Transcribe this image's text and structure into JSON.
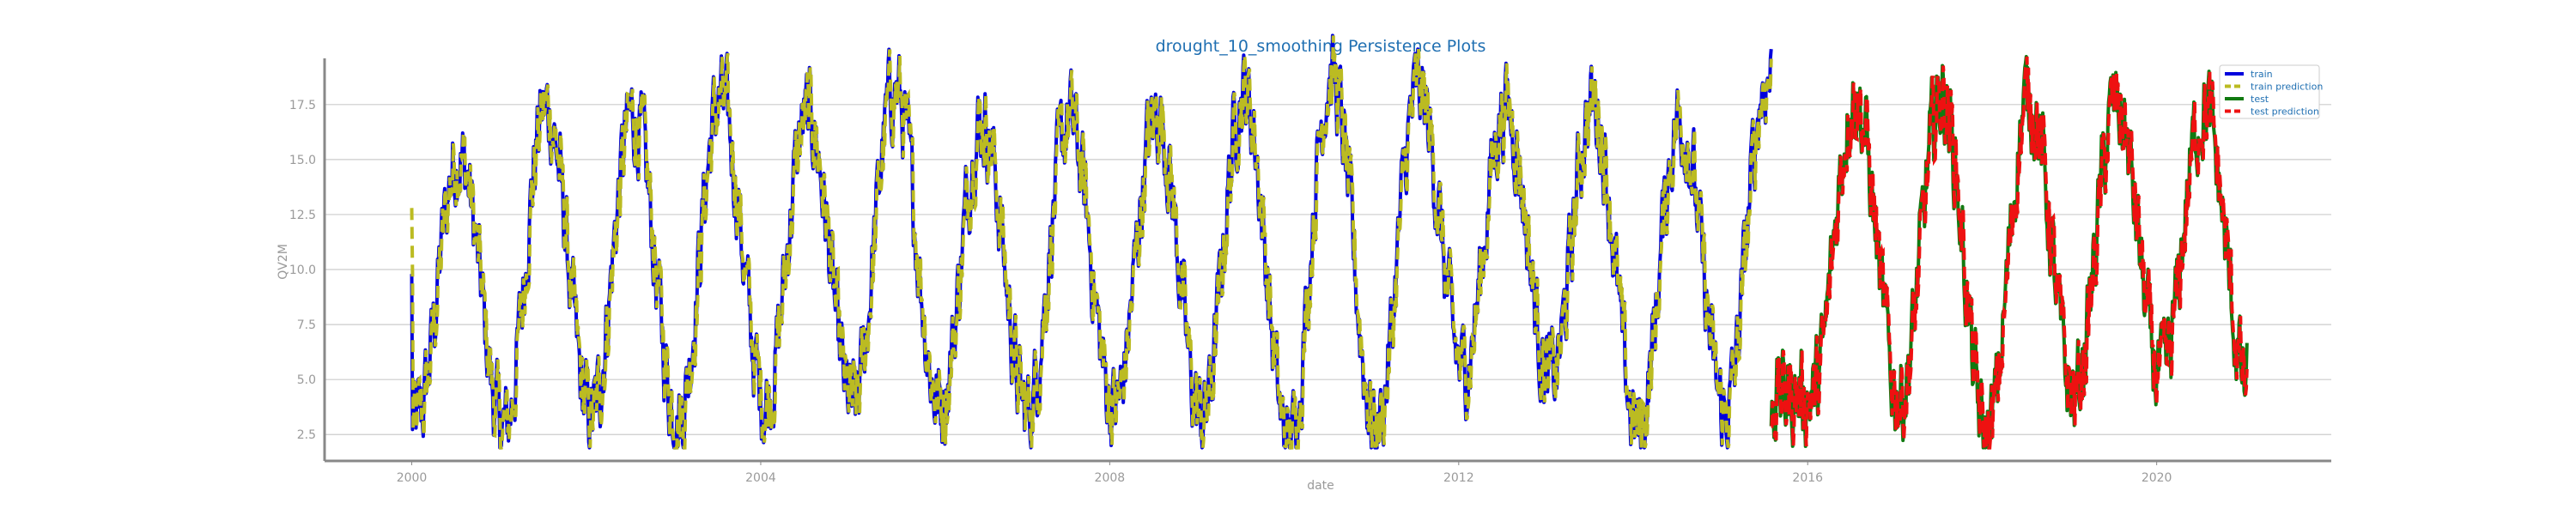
{
  "chart_data": {
    "type": "line",
    "title": "drought_10_smoothing Persistence Plots",
    "xlabel": "date",
    "ylabel": "QV2M",
    "xlim": [
      "1999-01-01",
      "2022-01-01"
    ],
    "ylim": [
      1.3,
      19.6
    ],
    "x_ticks": [
      "2000",
      "2004",
      "2008",
      "2012",
      "2016",
      "2020"
    ],
    "y_ticks": [
      "2.5",
      "5.0",
      "7.5",
      "10.0",
      "12.5",
      "15.0",
      "17.5"
    ],
    "grid": "horizontal",
    "legend_position": "top-right",
    "colors": {
      "train": "#0000dd",
      "train_prediction": "#bbbb22",
      "test": "#117a11",
      "test_prediction": "#ee1111",
      "title": "#1f6fb2",
      "grid": "#cccccc",
      "axis": "#888888"
    },
    "series": [
      {
        "name": "train",
        "style": "solid",
        "x_range": [
          "2000-01-01",
          "2015-08-01"
        ],
        "annual_cycle": {
          "peak_month": "July",
          "trough_month": "January",
          "peaks": [
            [
              "2000",
              15.2
            ],
            [
              "2001",
              17.3
            ],
            [
              "2002",
              17.0
            ],
            [
              "2003",
              17.6
            ],
            [
              "2004",
              17.0
            ],
            [
              "2005",
              18.2
            ],
            [
              "2006",
              16.8
            ],
            [
              "2007",
              16.7
            ],
            [
              "2008",
              17.1
            ],
            [
              "2009",
              18.1
            ],
            [
              "2010",
              18.8
            ],
            [
              "2011",
              18.1
            ],
            [
              "2012",
              17.4
            ],
            [
              "2013",
              17.5
            ],
            [
              "2014",
              16.9
            ],
            [
              "2015",
              18.8
            ]
          ],
          "troughs": [
            [
              "2000",
              3.1
            ],
            [
              "2001",
              2.7
            ],
            [
              "2002",
              3.3
            ],
            [
              "2003",
              3.3
            ],
            [
              "2004",
              4.1
            ],
            [
              "2005",
              3.8
            ],
            [
              "2006",
              3.9
            ],
            [
              "2007",
              3.6
            ],
            [
              "2008",
              3.8
            ],
            [
              "2009",
              3.2
            ],
            [
              "2010",
              2.1
            ],
            [
              "2011",
              2.8
            ],
            [
              "2012",
              5.5
            ],
            [
              "2013",
              5.0
            ],
            [
              "2014",
              2.7
            ],
            [
              "2015",
              3.5
            ]
          ]
        }
      },
      {
        "name": "train prediction",
        "style": "dashed",
        "x_range": [
          "2000-01-01",
          "2015-08-01"
        ],
        "start_value": 12.8
      },
      {
        "name": "test",
        "style": "solid",
        "x_range": [
          "2015-08-01",
          "2021-01-15"
        ],
        "annual_cycle": {
          "peak_month": "July",
          "trough_month": "January",
          "peaks": [
            [
              "2016",
              17.9
            ],
            [
              "2017",
              17.9
            ],
            [
              "2018",
              17.8
            ],
            [
              "2019",
              17.4
            ],
            [
              "2020",
              17.3
            ]
          ],
          "troughs": [
            [
              "2016",
              4.3
            ],
            [
              "2017",
              4.2
            ],
            [
              "2018",
              2.4
            ],
            [
              "2019",
              4.4
            ],
            [
              "2020",
              5.0
            ],
            [
              "2021",
              4.5
            ]
          ]
        }
      },
      {
        "name": "test prediction",
        "style": "dashed",
        "x_range": [
          "2015-08-01",
          "2021-01-15"
        ]
      }
    ]
  }
}
